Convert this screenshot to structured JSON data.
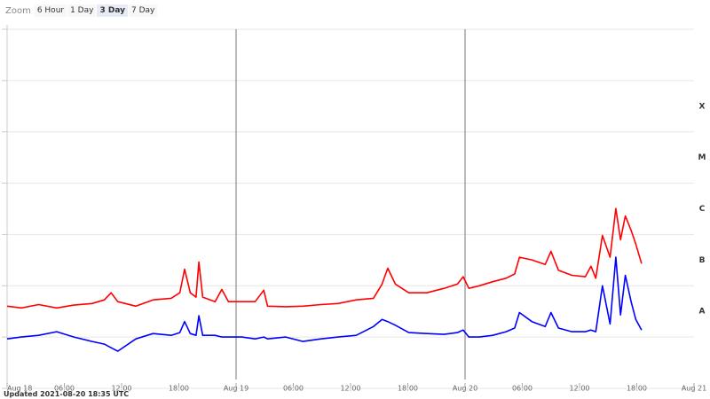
{
  "zoom": {
    "label": "Zoom",
    "buttons": [
      "6 Hour",
      "1 Day",
      "3 Day",
      "7 Day"
    ],
    "selected": 2
  },
  "updated": "Updated 2021-08-20 18:35 UTC",
  "chart_data": {
    "type": "line",
    "log_scale": true,
    "xlim": [
      0,
      72
    ],
    "xticks": [
      {
        "value": 0,
        "label": "Aug 18"
      },
      {
        "value": 6,
        "label": "06:00"
      },
      {
        "value": 12,
        "label": "12:00"
      },
      {
        "value": 18,
        "label": "18:00"
      },
      {
        "value": 24,
        "label": "Aug 19"
      },
      {
        "value": 30,
        "label": "06:00"
      },
      {
        "value": 36,
        "label": "12:00"
      },
      {
        "value": 42,
        "label": "18:00"
      },
      {
        "value": 48,
        "label": "Aug 20"
      },
      {
        "value": 54,
        "label": "06:00"
      },
      {
        "value": 60,
        "label": "12:00"
      },
      {
        "value": 66,
        "label": "18:00"
      },
      {
        "value": 72,
        "label": "Aug 21"
      }
    ],
    "day_separators": [
      24,
      48
    ],
    "ylim": [
      1e-09,
      0.01
    ],
    "ygrid": [
      1e-09,
      1e-08,
      1e-07,
      1e-06,
      1e-05,
      0.0001,
      0.001,
      0.01
    ],
    "flare_classes": [
      {
        "label": "A",
        "value": 1e-08
      },
      {
        "label": "B",
        "value": 1e-07
      },
      {
        "label": "C",
        "value": 1e-06
      },
      {
        "label": "M",
        "value": 1e-05
      },
      {
        "label": "X",
        "value": 0.0001
      }
    ],
    "x": [
      0,
      1.5,
      3.3,
      5.2,
      7.0,
      8.9,
      10.2,
      10.9,
      11.6,
      13.5,
      15.3,
      17.2,
      18.1,
      18.6,
      19.2,
      19.8,
      20.1,
      20.5,
      21.8,
      22.5,
      23.2,
      24.6,
      26.0,
      26.9,
      27.3,
      29.2,
      31.0,
      32.9,
      34.7,
      36.6,
      38.4,
      39.3,
      39.9,
      40.7,
      42.1,
      44.0,
      45.8,
      47.2,
      47.8,
      48.4,
      49.5,
      50.9,
      52.3,
      53.2,
      53.7,
      55.0,
      56.4,
      57.0,
      57.8,
      59.2,
      60.6,
      61.2,
      61.7,
      62.4,
      63.2,
      63.8,
      64.3,
      64.8,
      65.4,
      65.9,
      66.5
    ],
    "series": [
      {
        "color": "#ff0000",
        "values": [
          4e-08,
          3.7e-08,
          4.3e-08,
          3.7e-08,
          4.2e-08,
          4.5e-08,
          5.3e-08,
          7.3e-08,
          4.9e-08,
          4e-08,
          5.3e-08,
          5.7e-08,
          7.3e-08,
          2.1e-07,
          7.3e-08,
          6e-08,
          2.9e-07,
          6e-08,
          4.9e-08,
          8.5e-08,
          4.9e-08,
          4.9e-08,
          4.9e-08,
          8.2e-08,
          4e-08,
          3.9e-08,
          4e-08,
          4.3e-08,
          4.5e-08,
          5.3e-08,
          5.7e-08,
          1.08e-07,
          2.2e-07,
          1.08e-07,
          7.3e-08,
          7.3e-08,
          8.9e-08,
          1.08e-07,
          1.5e-07,
          8.9e-08,
          1e-07,
          1.2e-07,
          1.4e-07,
          1.7e-07,
          3.6e-07,
          3.2e-07,
          2.6e-07,
          4.7e-07,
          2e-07,
          1.6e-07,
          1.5e-07,
          2.4e-07,
          1.4e-07,
          9.6e-07,
          3.6e-07,
          3.2e-06,
          7.9e-07,
          2.3e-06,
          1.2e-06,
          6.5e-07,
          2.7e-07
        ]
      },
      {
        "color": "#0000ff",
        "values": [
          9.2e-09,
          1e-08,
          1.08e-08,
          1.27e-08,
          1e-08,
          8.2e-09,
          7.3e-09,
          6.2e-09,
          5.3e-09,
          9.2e-09,
          1.17e-08,
          1.08e-08,
          1.22e-08,
          2e-08,
          1.17e-08,
          1.08e-08,
          2.6e-08,
          1.08e-08,
          1.08e-08,
          1e-08,
          1e-08,
          1e-08,
          9.2e-09,
          1e-08,
          9.2e-09,
          1e-08,
          8.2e-09,
          9.2e-09,
          1e-08,
          1.08e-08,
          1.6e-08,
          2.2e-08,
          2e-08,
          1.7e-08,
          1.22e-08,
          1.17e-08,
          1.13e-08,
          1.22e-08,
          1.37e-08,
          1e-08,
          1e-08,
          1.08e-08,
          1.27e-08,
          1.5e-08,
          3e-08,
          2e-08,
          1.6e-08,
          3e-08,
          1.5e-08,
          1.27e-08,
          1.27e-08,
          1.37e-08,
          1.27e-08,
          1e-07,
          1.8e-08,
          3.6e-07,
          2.7e-08,
          1.6e-07,
          4.9e-08,
          2.2e-08,
          1.37e-08
        ]
      }
    ]
  }
}
